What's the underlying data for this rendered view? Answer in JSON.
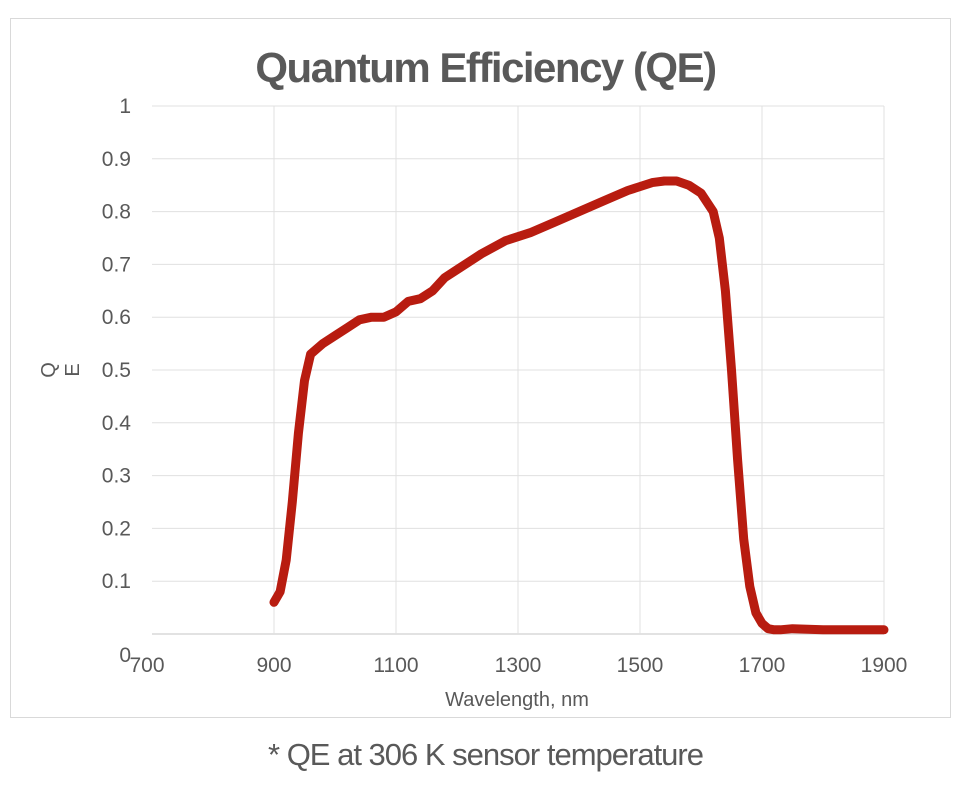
{
  "chart_data": {
    "type": "line",
    "title": "Quantum Efficiency (QE)",
    "xlabel": "Wavelength,  nm",
    "ylabel": "QE",
    "xlim": [
      700,
      1900
    ],
    "ylim": [
      0,
      1
    ],
    "x_ticks": [
      "700",
      "900",
      "1100",
      "1300",
      "1500",
      "1700",
      "1900"
    ],
    "y_ticks": [
      "0",
      "0.1",
      "0.2",
      "0.3",
      "0.4",
      "0.5",
      "0.6",
      "0.7",
      "0.8",
      "0.9",
      "1"
    ],
    "grid": true,
    "line_color": "#b81c10",
    "series": [
      {
        "x": [
          900,
          910,
          920,
          930,
          940,
          950,
          960,
          970,
          980,
          1000,
          1020,
          1040,
          1060,
          1080,
          1100,
          1120,
          1140,
          1160,
          1180,
          1200,
          1240,
          1280,
          1320,
          1360,
          1400,
          1440,
          1480,
          1520,
          1540,
          1560,
          1580,
          1600,
          1620,
          1630,
          1640,
          1650,
          1660,
          1670,
          1680,
          1690,
          1700,
          1710,
          1720,
          1730,
          1750,
          1800,
          1850,
          1900
        ],
        "y": [
          0.06,
          0.08,
          0.14,
          0.25,
          0.38,
          0.48,
          0.53,
          0.54,
          0.55,
          0.565,
          0.58,
          0.595,
          0.6,
          0.6,
          0.61,
          0.63,
          0.635,
          0.65,
          0.675,
          0.69,
          0.72,
          0.745,
          0.76,
          0.78,
          0.8,
          0.82,
          0.84,
          0.855,
          0.858,
          0.858,
          0.85,
          0.835,
          0.8,
          0.75,
          0.65,
          0.5,
          0.33,
          0.18,
          0.09,
          0.04,
          0.02,
          0.01,
          0.008,
          0.008,
          0.01,
          0.008,
          0.008,
          0.008
        ]
      }
    ]
  },
  "footnote": "* QE at 306 K sensor temperature"
}
